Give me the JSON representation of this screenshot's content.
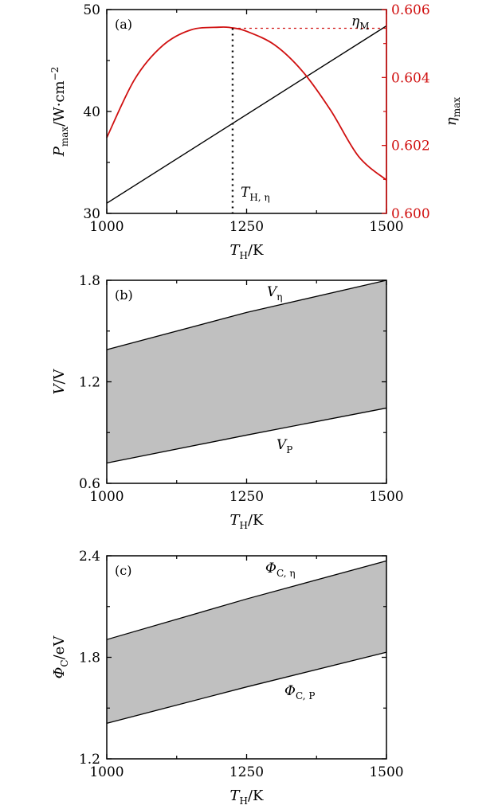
{
  "chart_data": [
    {
      "type": "line",
      "panel": "(a)",
      "x_range": [
        1000,
        1500
      ],
      "x_ticks": [
        "1000",
        "1250",
        "1500"
      ],
      "xlabel": {
        "main": "T",
        "sub": "H",
        "unit": "/K"
      },
      "y_left_range": [
        30,
        50
      ],
      "y_left_ticks": [
        "30",
        "40",
        "50"
      ],
      "ylabel_left": {
        "main": "P",
        "sub": "max",
        "unit": "/W·cm",
        "sup": "−2"
      },
      "y_right_range": [
        0.6,
        0.606
      ],
      "y_right_ticks": [
        "0.600",
        "0.602",
        "0.604",
        "0.606"
      ],
      "ylabel_right": {
        "main": "η",
        "sub": "max"
      },
      "series": [
        {
          "axis": "left",
          "color": "#000000",
          "x": [
            1000,
            1500
          ],
          "y": [
            31.0,
            48.4
          ]
        },
        {
          "axis": "right",
          "color": "#d01010",
          "x": [
            1000,
            1050,
            1100,
            1150,
            1200,
            1225,
            1250,
            1300,
            1350,
            1400,
            1450,
            1500
          ],
          "y": [
            0.60223,
            0.60395,
            0.60494,
            0.6054,
            0.60548,
            0.60546,
            0.60536,
            0.60496,
            0.60418,
            0.60304,
            0.60168,
            0.60098
          ]
        }
      ],
      "eta_M_value": 0.60545,
      "T_H_eta": 1225,
      "annotations": {
        "eta_M": {
          "main": "η",
          "sub": "M"
        },
        "T_H_eta": {
          "main": "T",
          "sub": "H, η"
        }
      }
    },
    {
      "type": "area",
      "panel": "(b)",
      "x_range": [
        1000,
        1500
      ],
      "x_ticks": [
        "1000",
        "1250",
        "1500"
      ],
      "xlabel": {
        "main": "T",
        "sub": "H",
        "unit": "/K"
      },
      "y_range": [
        0.6,
        1.8
      ],
      "y_ticks": [
        "0.6",
        "1.2",
        "1.8"
      ],
      "ylabel": {
        "main": "V",
        "unit": "/V"
      },
      "fill": "#c0c0c0",
      "upper": {
        "x": [
          1000,
          1250,
          1500
        ],
        "y": [
          1.39,
          1.61,
          1.8
        ]
      },
      "lower": {
        "x": [
          1000,
          1250,
          1500
        ],
        "y": [
          0.72,
          0.885,
          1.045
        ]
      },
      "annotations": {
        "upper": {
          "main": "V",
          "sub": "η"
        },
        "lower": {
          "main": "V",
          "sub": "P"
        }
      }
    },
    {
      "type": "area",
      "panel": "(c)",
      "x_range": [
        1000,
        1500
      ],
      "x_ticks": [
        "1000",
        "1250",
        "1500"
      ],
      "xlabel": {
        "main": "T",
        "sub": "H",
        "unit": "/K"
      },
      "y_range": [
        1.2,
        2.4
      ],
      "y_ticks": [
        "1.2",
        "1.8",
        "2.4"
      ],
      "ylabel": {
        "main": "Φ",
        "sub": "C",
        "unit": "/eV"
      },
      "fill": "#c0c0c0",
      "upper": {
        "x": [
          1000,
          1250,
          1500
        ],
        "y": [
          1.905,
          2.145,
          2.37
        ]
      },
      "lower": {
        "x": [
          1000,
          1250,
          1500
        ],
        "y": [
          1.41,
          1.625,
          1.83
        ]
      },
      "annotations": {
        "upper": {
          "main": "Φ",
          "sub": "C, η"
        },
        "lower": {
          "main": "Φ",
          "sub": "C, P"
        }
      }
    }
  ]
}
